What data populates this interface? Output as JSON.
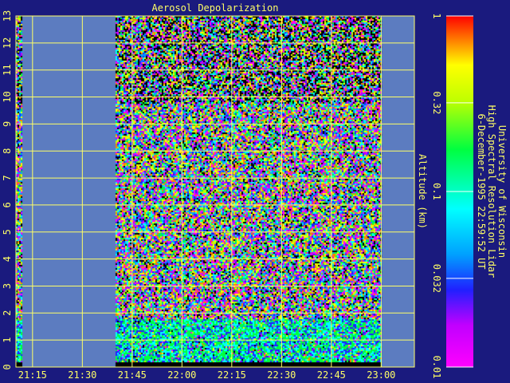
{
  "chart_data": {
    "type": "heatmap",
    "title": "Aerosol Depolarization",
    "ylabel": "Altitude (km)",
    "xlabel": "",
    "x_ticks": [
      "21:15",
      "21:30",
      "21:45",
      "22:00",
      "22:15",
      "22:30",
      "22:45",
      "23:00"
    ],
    "y_ticks": [
      0,
      1,
      2,
      3,
      4,
      5,
      6,
      7,
      8,
      9,
      10,
      11,
      12,
      13
    ],
    "ylim": [
      0,
      13
    ],
    "xlim": [
      "21:10",
      "23:10"
    ],
    "data_coverage": [
      {
        "start": "21:10",
        "end": "21:12"
      },
      {
        "start": "21:40",
        "end": "23:00"
      }
    ],
    "grid": true,
    "colorbar": {
      "scale": "log",
      "range": [
        0.01,
        1
      ],
      "ticks": [
        "1",
        "0.32",
        "0.1",
        "0.032",
        "0.01"
      ]
    },
    "credit_lines": [
      "University of Wisconsin",
      "High Spectral Resolution Lidar",
      "6-December-1995 22:59:52 UT"
    ],
    "colors": {
      "background": "#1a1a7e",
      "plot_background": "#5c7cc0",
      "grid": "#ffff66",
      "text": "#ffff66"
    }
  }
}
